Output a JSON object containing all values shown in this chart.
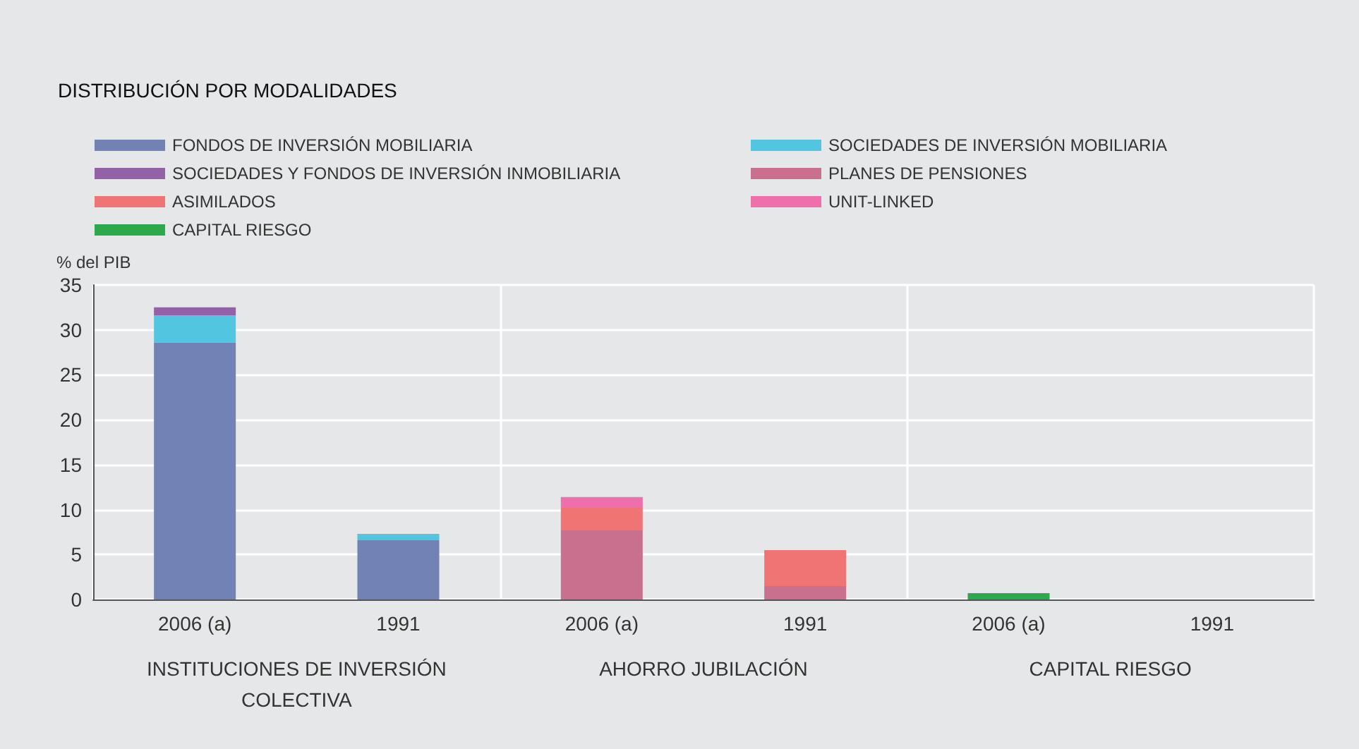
{
  "chart_data": {
    "type": "bar",
    "title": "DISTRIBUCIÓN POR MODALIDADES",
    "ylabel": "% del PIB",
    "categories": [
      "2006 (a)",
      "1991",
      "2006 (a)",
      "1991",
      "2006 (a)",
      "1991"
    ],
    "annotations": [
      "INSTITUCIONES DE INVERSIÓN\nCOLECTIVA",
      "AHORRO JUBILACIÓN",
      "CAPITAL RIESGO"
    ],
    "stacked": true,
    "series": [
      {
        "name": "FONDOS DE INVERSIÓN MOBILIARIA",
        "color": "#7382b4",
        "values": [
          28.6,
          6.6,
          null,
          null,
          null,
          null
        ]
      },
      {
        "name": "SOCIEDADES DE INVERSIÓN MOBILIARIA",
        "color": "#52c6e0",
        "values": [
          3.0,
          0.7,
          null,
          null,
          null,
          null
        ]
      },
      {
        "name": "SOCIEDADES Y FONDOS DE INVERSIÓN INMOBILIARIA",
        "color": "#9460a8",
        "values": [
          0.9,
          null,
          null,
          null,
          null,
          null
        ]
      },
      {
        "name": "PLANES DE PENSIONES",
        "color": "#c8708e",
        "values": [
          null,
          null,
          7.7,
          1.5,
          null,
          null
        ]
      },
      {
        "name": "ASIMILADOS",
        "color": "#f07474",
        "values": [
          null,
          null,
          2.5,
          4.0,
          null,
          null
        ]
      },
      {
        "name": "UNIT-LINKED",
        "color": "#ee6fab",
        "values": [
          null,
          null,
          1.2,
          null,
          null,
          null
        ]
      },
      {
        "name": "CAPITAL RIESGO",
        "color": "#2da84a",
        "values": [
          null,
          null,
          null,
          null,
          0.7,
          null
        ]
      }
    ],
    "ylim": [
      0,
      35
    ],
    "yticks": [
      0,
      5,
      10,
      15,
      20,
      25,
      30,
      35
    ],
    "grid": true,
    "legend": "top left"
  }
}
